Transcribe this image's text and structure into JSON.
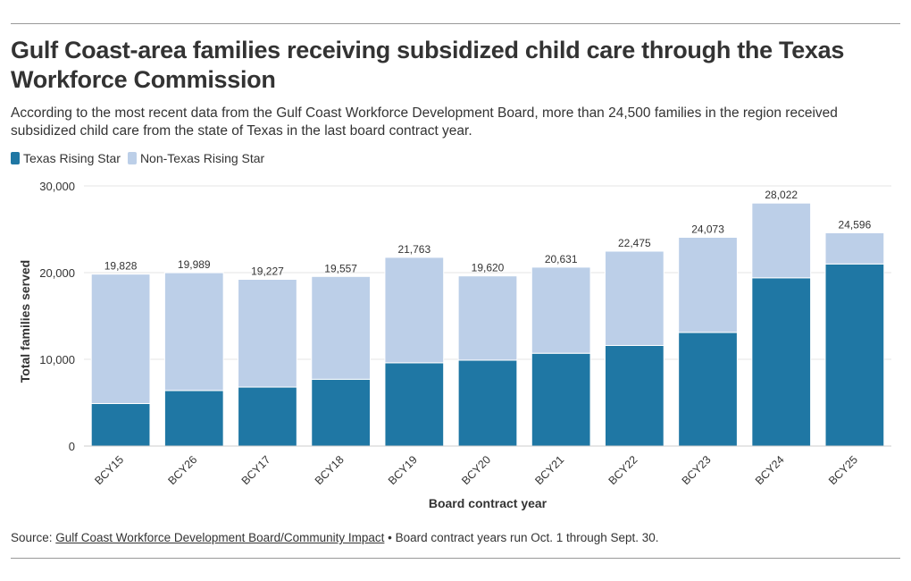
{
  "title": "Gulf Coast-area families receiving subsidized child care through the Texas Workforce Commission",
  "subtitle": "According to the most recent data from the Gulf Coast Workforce Development Board, more than 24,500 families in the region received subsidized child care from the state of Texas in the last board contract year.",
  "legend": [
    {
      "label": "Texas Rising Star",
      "color": "#1f77a4"
    },
    {
      "label": "Non-Texas Rising Star",
      "color": "#bccfe8"
    }
  ],
  "source": {
    "prefix": "Source: ",
    "link_text": "Gulf Coast Workforce Development Board/Community Impact",
    "suffix": " • Board contract years run Oct. 1 through Sept. 30."
  },
  "chart_data": {
    "type": "bar",
    "stacked": true,
    "title": "Gulf Coast-area families receiving subsidized child care through the Texas Workforce Commission",
    "xlabel": "Board contract year",
    "ylabel": "Total families served",
    "ylim": [
      0,
      30000
    ],
    "yticks": [
      0,
      10000,
      20000,
      30000
    ],
    "ytick_labels": [
      "0",
      "10,000",
      "20,000",
      "30,000"
    ],
    "categories": [
      "BCY15",
      "BCY26",
      "BCY17",
      "BCY18",
      "BCY19",
      "BCY20",
      "BCY21",
      "BCY22",
      "BCY23",
      "BCY24",
      "BCY25"
    ],
    "series": [
      {
        "name": "Texas Rising Star",
        "color": "#1f77a4",
        "values": [
          4900,
          6400,
          6800,
          7700,
          9600,
          9900,
          10700,
          11600,
          13100,
          19400,
          21000
        ]
      },
      {
        "name": "Non-Texas Rising Star",
        "color": "#bccfe8",
        "values": [
          14928,
          13589,
          12427,
          11857,
          12163,
          9720,
          9931,
          10875,
          10973,
          8622,
          3596
        ]
      }
    ],
    "totals": [
      19828,
      19989,
      19227,
      19557,
      21763,
      19620,
      20631,
      22475,
      24073,
      28022,
      24596
    ],
    "total_labels": [
      "19,828",
      "19,989",
      "19,227",
      "19,557",
      "21,763",
      "19,620",
      "20,631",
      "22,475",
      "24,073",
      "28,022",
      "24,596"
    ],
    "grid": true,
    "legend_position": "top-left"
  }
}
